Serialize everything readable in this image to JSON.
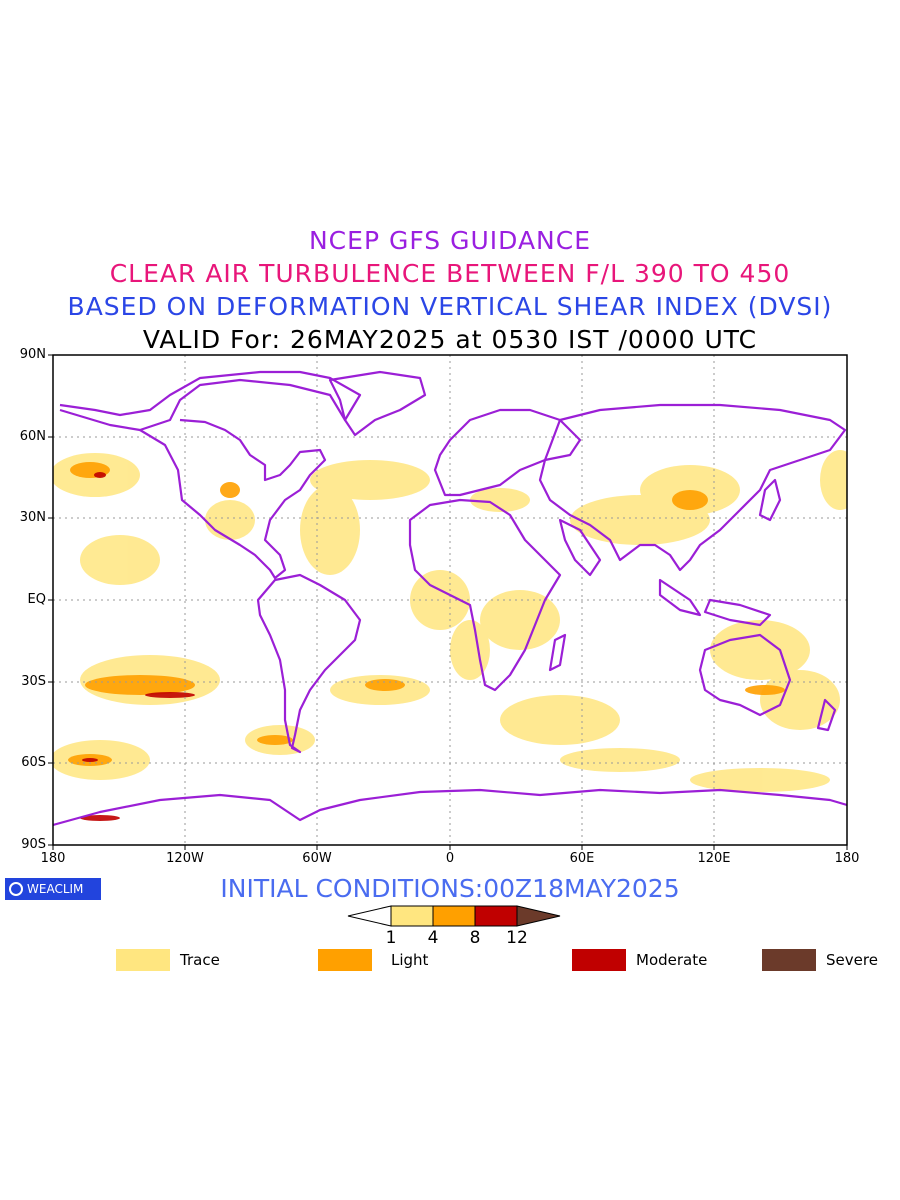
{
  "titles": {
    "line1": "NCEP GFS GUIDANCE",
    "line2": "CLEAR AIR TURBULENCE BETWEEN F/L 390 TO 450",
    "line3": "BASED ON DEFORMATION VERTICAL SHEAR INDEX (DVSI)",
    "line4": "VALID For: 26MAY2025 at 0530 IST /0000 UTC"
  },
  "map": {
    "lat_labels": [
      "90N",
      "60N",
      "30N",
      "EQ",
      "30S",
      "60S",
      "90S"
    ],
    "lon_labels": [
      "180",
      "120W",
      "60W",
      "0",
      "60E",
      "120E",
      "180"
    ],
    "coastline_color": "#9b1fd6",
    "grid_color": "#999999"
  },
  "footer": {
    "badge": "WEACLIM",
    "initial_conditions": "INITIAL CONDITIONS:00Z18MAY2025"
  },
  "colorbar": {
    "ticks": [
      "1",
      "4",
      "8",
      "12"
    ],
    "colors": [
      "#ffffff",
      "#ffe680",
      "#ffa000",
      "#c00000",
      "#6b3a2a"
    ]
  },
  "legend": [
    {
      "label": "Trace",
      "color": "#ffe680"
    },
    {
      "label": "Light",
      "color": "#ffa000"
    },
    {
      "label": "Moderate",
      "color": "#c00000"
    },
    {
      "label": "Severe",
      "color": "#6b3a2a"
    }
  ]
}
